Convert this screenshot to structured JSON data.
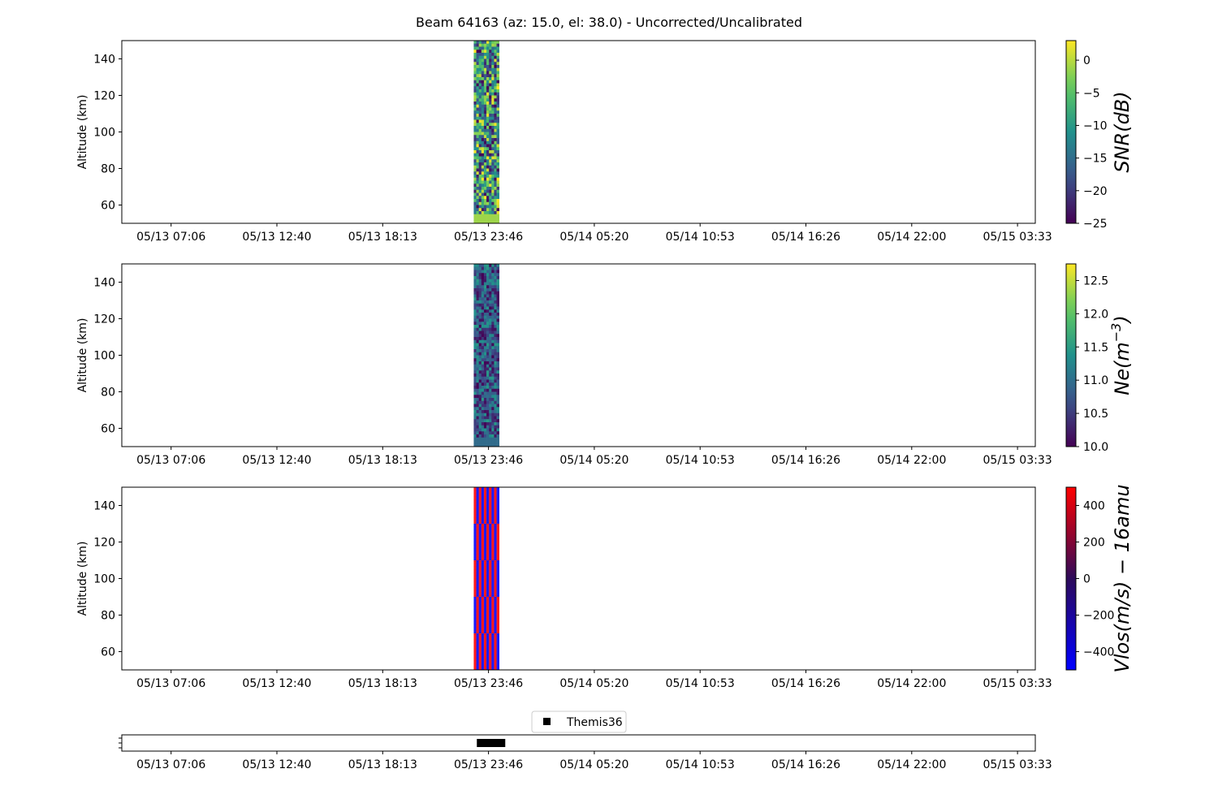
{
  "title": "Beam 64163 (az: 15.0, el: 38.0) - Uncorrected/Uncalibrated",
  "chart_data": [
    {
      "type": "heatmap",
      "ylabel": "Altitude (km)",
      "ylim": [
        50,
        150
      ],
      "yticks": [
        60,
        80,
        100,
        120,
        140
      ],
      "xticks": [
        "05/13 07:06",
        "05/13 12:40",
        "05/13 18:13",
        "05/13 23:46",
        "05/14 05:20",
        "05/14 10:53",
        "05/14 16:26",
        "05/14 22:00",
        "05/15 03:33"
      ],
      "colorbar": {
        "label": "SNR(dB)",
        "colormap": "viridis",
        "range": [
          -25,
          3
        ],
        "ticks": [
          "0",
          "−5",
          "−10",
          "−15",
          "−20",
          "−25"
        ],
        "tick_values": [
          0,
          -5,
          -10,
          -15,
          -20,
          -25
        ]
      },
      "data_window": {
        "start": "05/13 23:00",
        "end": "05/14 00:20",
        "alt_min": 50,
        "alt_max": 150
      }
    },
    {
      "type": "heatmap",
      "ylabel": "Altitude (km)",
      "ylim": [
        50,
        150
      ],
      "yticks": [
        60,
        80,
        100,
        120,
        140
      ],
      "xticks": [
        "05/13 07:06",
        "05/13 12:40",
        "05/13 18:13",
        "05/13 23:46",
        "05/14 05:20",
        "05/14 10:53",
        "05/14 16:26",
        "05/14 22:00",
        "05/15 03:33"
      ],
      "colorbar": {
        "label_main": "Ne(m",
        "label_sup": "−3",
        "label_end": ")",
        "colormap": "viridis",
        "range": [
          10.0,
          12.75
        ],
        "ticks": [
          "12.5",
          "12.0",
          "11.5",
          "11.0",
          "10.5",
          "10.0"
        ],
        "tick_values": [
          12.5,
          12.0,
          11.5,
          11.0,
          10.5,
          10.0
        ]
      },
      "data_window": {
        "start": "05/13 23:00",
        "end": "05/14 00:20",
        "alt_min": 50,
        "alt_max": 150
      }
    },
    {
      "type": "heatmap",
      "ylabel": "Altitude (km)",
      "ylim": [
        50,
        150
      ],
      "yticks": [
        60,
        80,
        100,
        120,
        140
      ],
      "xticks": [
        "05/13 07:06",
        "05/13 12:40",
        "05/13 18:13",
        "05/13 23:46",
        "05/14 05:20",
        "05/14 10:53",
        "05/14 16:26",
        "05/14 22:00",
        "05/15 03:33"
      ],
      "colorbar": {
        "label": "Vlos(m/s) − 16amu",
        "colormap": "blue-red",
        "range": [
          -500,
          500
        ],
        "ticks": [
          "400",
          "200",
          "0",
          "−200",
          "−400"
        ],
        "tick_values": [
          400,
          200,
          0,
          -200,
          -400
        ]
      },
      "data_window": {
        "start": "05/13 23:00",
        "end": "05/14 00:20",
        "alt_min": 50,
        "alt_max": 150
      }
    },
    {
      "type": "scatter",
      "xticks": [
        "05/13 07:06",
        "05/13 12:40",
        "05/13 18:13",
        "05/13 23:46",
        "05/14 05:20",
        "05/14 10:53",
        "05/14 16:26",
        "05/14 22:00",
        "05/15 03:33"
      ],
      "legend": {
        "label": "Themis36",
        "placement": "top-center",
        "marker": "square",
        "color": "#000000"
      },
      "series": [
        {
          "name": "Themis36",
          "x_start": "05/13 23:20",
          "x_end": "05/14 00:30",
          "y": 0
        }
      ]
    }
  ]
}
